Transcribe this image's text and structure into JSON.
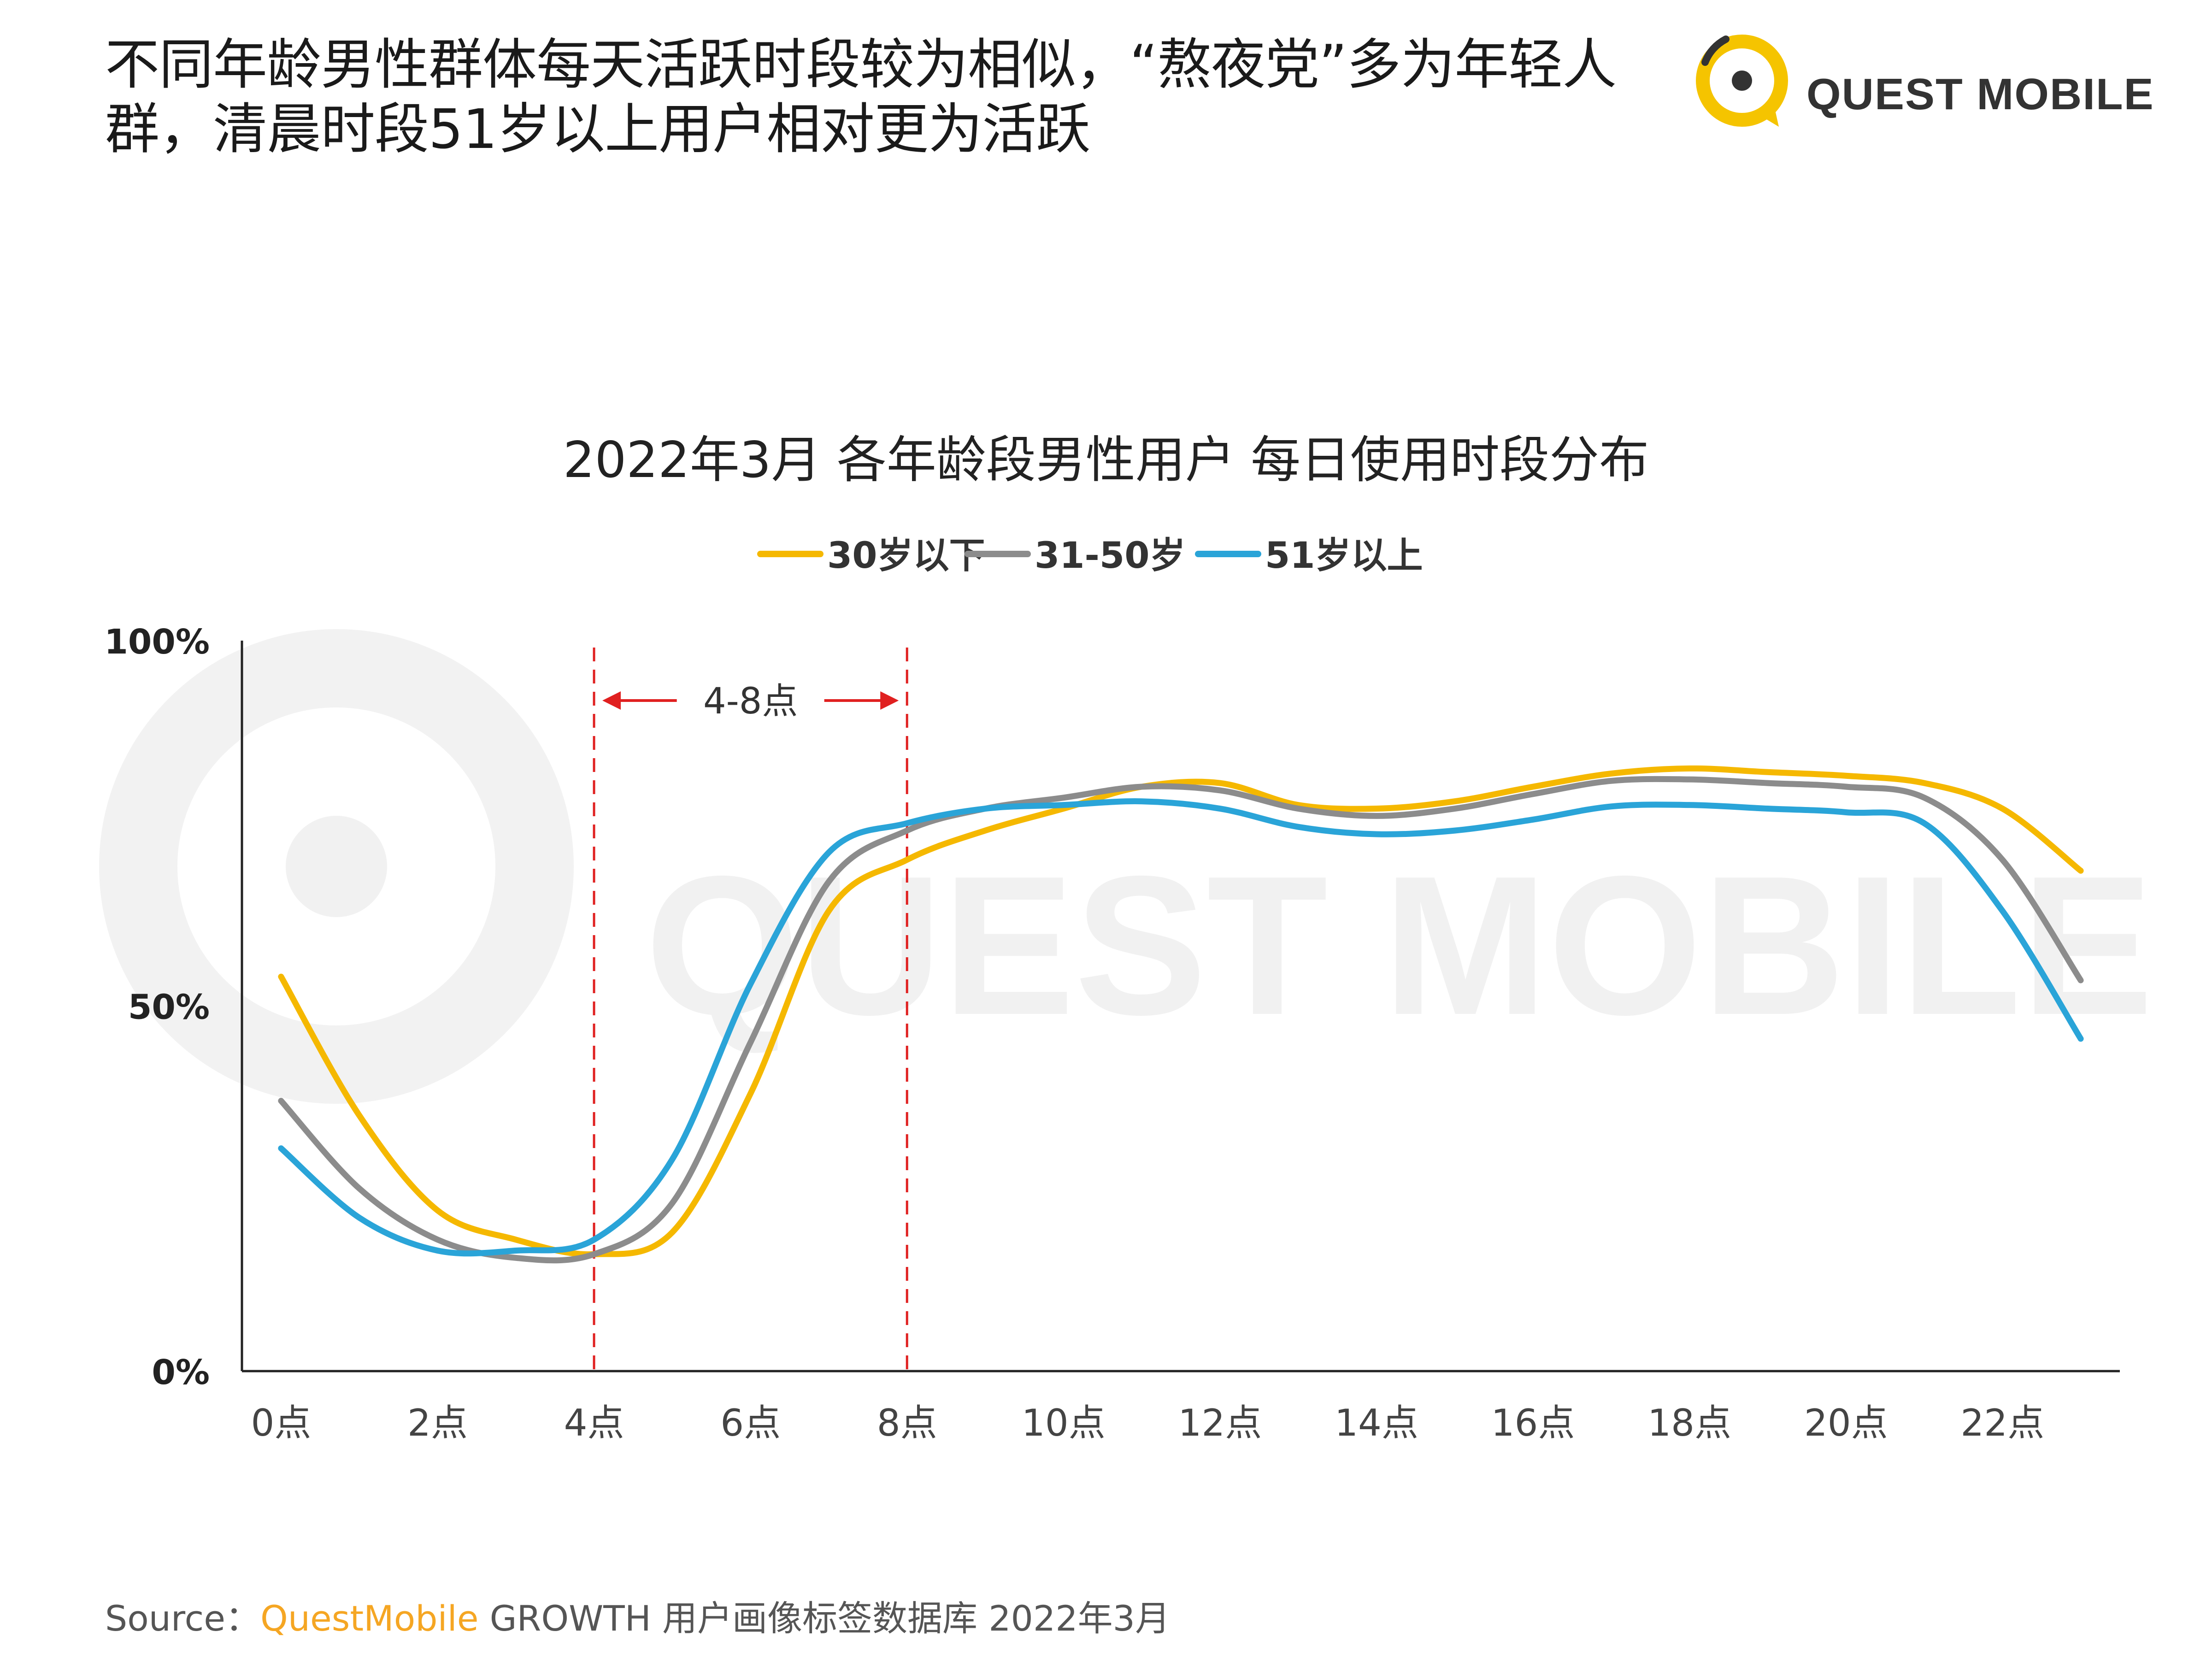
{
  "headline": {
    "line1": "不同年龄男性群体每天活跃时段较为相似，“熬夜党”多为年轻人",
    "line2": "群，清晨时段51岁以上用户相对更为活跃"
  },
  "brand": {
    "logo_text": "QUEST MOBILE",
    "logo_color": "#f5c400",
    "watermark_text": "QUEST MOBILE"
  },
  "source": {
    "prefix": "Source：",
    "brand": "QuestMobile",
    "rest": " GROWTH 用户画像标签数据库 2022年3月"
  },
  "chart_data": {
    "type": "line",
    "title": "2022年3月 各年龄段男性用户 每日使用时段分布",
    "ylim": [
      0,
      100
    ],
    "y_ticks": [
      "0%",
      "50%",
      "100%"
    ],
    "x_tick_labels": [
      "0点",
      "2点",
      "4点",
      "6点",
      "8点",
      "10点",
      "12点",
      "14点",
      "16点",
      "18点",
      "20点",
      "22点"
    ],
    "x_tick_hours": [
      0,
      2,
      4,
      6,
      8,
      10,
      12,
      14,
      16,
      18,
      20,
      22
    ],
    "xlim": [
      -0.5,
      23.5
    ],
    "legend_position": "top-center",
    "annotation": {
      "label": "4-8点",
      "from_hour": 4,
      "to_hour": 8,
      "color": "#e02020"
    },
    "series": [
      {
        "name": "30岁以下",
        "color": "#f5b800",
        "x": [
          0,
          1,
          2,
          3,
          4,
          5,
          6,
          7,
          8,
          9,
          10,
          11,
          12,
          13,
          14,
          15,
          16,
          17,
          18,
          19,
          20,
          21,
          22,
          23
        ],
        "values": [
          54,
          35,
          22,
          18,
          16,
          19,
          38,
          63,
          70,
          74,
          77,
          80,
          80.5,
          77.5,
          77,
          78,
          80,
          81.8,
          82.5,
          82,
          81.5,
          80.5,
          77,
          68.5
        ]
      },
      {
        "name": "31-50岁",
        "color": "#8c8c8c",
        "x": [
          0,
          1,
          2,
          3,
          4,
          5,
          6,
          7,
          8,
          9,
          10,
          11,
          12,
          13,
          14,
          15,
          16,
          17,
          18,
          19,
          20,
          21,
          22,
          23
        ],
        "values": [
          37,
          25,
          18,
          15.5,
          16,
          23,
          45,
          67,
          74,
          77,
          78.5,
          80,
          79.5,
          77,
          76,
          77,
          79,
          80.8,
          81,
          80.5,
          80,
          78.5,
          70,
          53.5
        ]
      },
      {
        "name": "51岁以上",
        "color": "#2aa4d8",
        "x": [
          0,
          1,
          2,
          3,
          4,
          5,
          6,
          7,
          8,
          9,
          10,
          11,
          12,
          13,
          14,
          15,
          16,
          17,
          18,
          19,
          20,
          21,
          22,
          23
        ],
        "values": [
          30.5,
          21,
          16.5,
          16.5,
          18,
          29,
          53,
          71,
          75,
          77,
          77.5,
          78,
          77,
          74.5,
          73.5,
          74,
          75.5,
          77.3,
          77.5,
          77,
          76.5,
          75,
          63,
          45.5
        ]
      }
    ]
  }
}
